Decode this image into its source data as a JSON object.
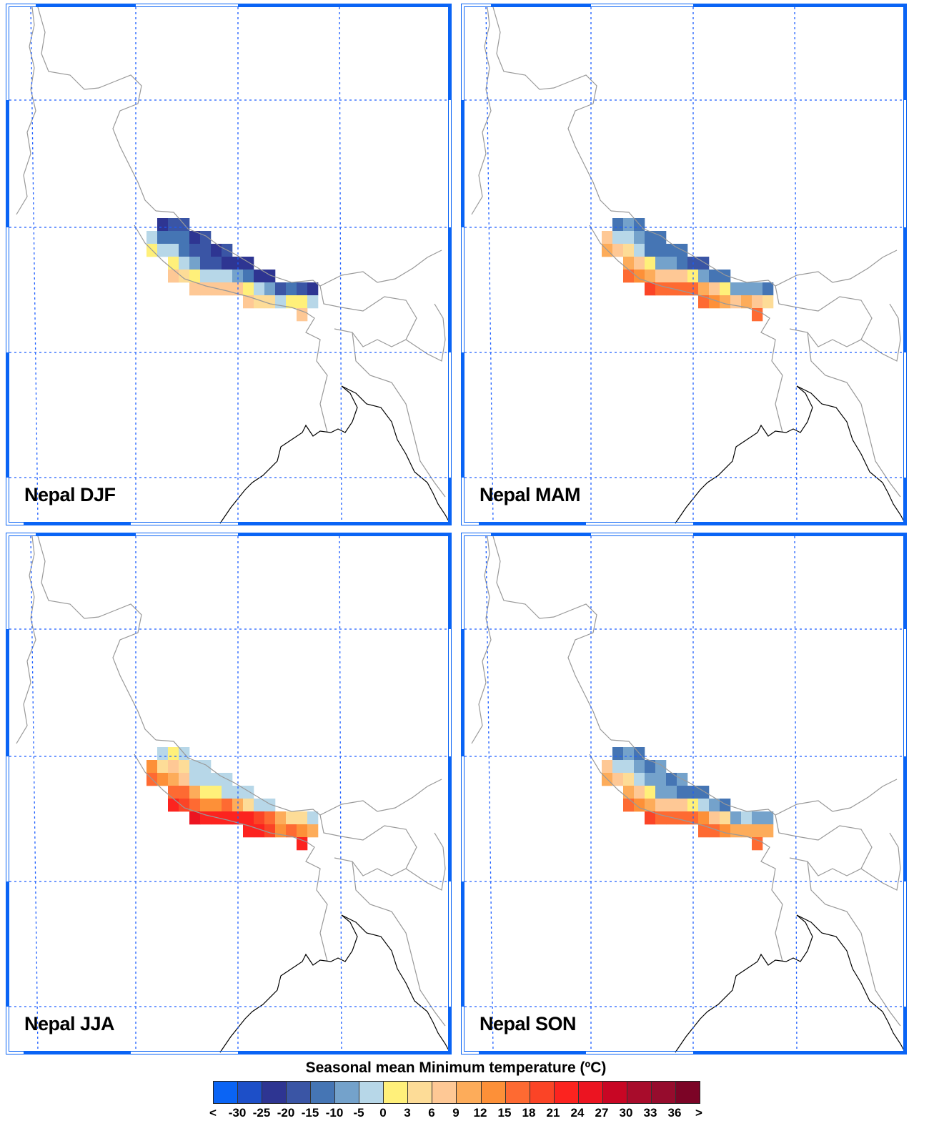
{
  "panels": [
    {
      "title": "Nepal DJF",
      "rows": [
        {
          "start": 1,
          "levels": [
            2,
            3,
            3
          ]
        },
        {
          "start": 0,
          "levels": [
            6,
            4,
            4,
            4,
            2,
            3
          ]
        },
        {
          "start": 0,
          "levels": [
            7,
            6,
            6,
            4,
            3,
            3,
            2,
            3
          ]
        },
        {
          "start": 2,
          "levels": [
            7,
            6,
            5,
            3,
            3,
            2,
            2,
            2
          ]
        },
        {
          "start": 2,
          "levels": [
            9,
            8,
            7,
            6,
            6,
            6,
            5,
            4,
            2,
            2
          ]
        },
        {
          "start": 4,
          "levels": [
            9,
            9,
            9,
            9,
            9,
            7,
            6,
            5,
            3,
            4,
            3,
            2
          ]
        },
        {
          "start": 9,
          "levels": [
            9,
            8,
            8,
            6,
            7,
            7,
            6
          ]
        },
        {
          "start": 14,
          "levels": [
            9
          ]
        }
      ]
    },
    {
      "title": "Nepal MAM",
      "rows": [
        {
          "start": 1,
          "levels": [
            4,
            5,
            4
          ]
        },
        {
          "start": 0,
          "levels": [
            9,
            6,
            6,
            5,
            4,
            4
          ]
        },
        {
          "start": 0,
          "levels": [
            10,
            9,
            8,
            6,
            4,
            4,
            4,
            4
          ]
        },
        {
          "start": 2,
          "levels": [
            10,
            9,
            7,
            5,
            5,
            4,
            3,
            3
          ]
        },
        {
          "start": 2,
          "levels": [
            12,
            11,
            10,
            9,
            9,
            9,
            7,
            5,
            4,
            4
          ]
        },
        {
          "start": 4,
          "levels": [
            13,
            12,
            12,
            12,
            12,
            10,
            9,
            7,
            5,
            5,
            5,
            4
          ]
        },
        {
          "start": 9,
          "levels": [
            12,
            11,
            10,
            9,
            10,
            9,
            8
          ]
        },
        {
          "start": 14,
          "levels": [
            12
          ]
        }
      ]
    },
    {
      "title": "Nepal JJA",
      "rows": [
        {
          "start": 1,
          "levels": [
            6,
            7,
            6
          ]
        },
        {
          "start": 0,
          "levels": [
            11,
            8,
            9,
            8,
            6,
            6
          ]
        },
        {
          "start": 0,
          "levels": [
            12,
            11,
            10,
            9,
            6,
            6,
            6,
            6
          ]
        },
        {
          "start": 2,
          "levels": [
            12,
            12,
            10,
            7,
            7,
            6,
            6,
            6
          ]
        },
        {
          "start": 2,
          "levels": [
            14,
            13,
            12,
            11,
            11,
            12,
            10,
            8,
            6,
            6
          ]
        },
        {
          "start": 4,
          "levels": [
            15,
            14,
            14,
            14,
            14,
            14,
            13,
            12,
            10,
            8,
            8,
            6
          ]
        },
        {
          "start": 9,
          "levels": [
            14,
            14,
            13,
            11,
            12,
            11,
            10
          ]
        },
        {
          "start": 14,
          "levels": [
            14
          ]
        }
      ]
    },
    {
      "title": "Nepal SON",
      "rows": [
        {
          "start": 1,
          "levels": [
            4,
            5,
            4
          ]
        },
        {
          "start": 0,
          "levels": [
            9,
            6,
            6,
            5,
            4,
            5
          ]
        },
        {
          "start": 0,
          "levels": [
            10,
            9,
            8,
            6,
            5,
            5,
            4,
            5
          ]
        },
        {
          "start": 2,
          "levels": [
            10,
            9,
            7,
            5,
            5,
            4,
            4,
            4
          ]
        },
        {
          "start": 2,
          "levels": [
            12,
            11,
            10,
            9,
            9,
            9,
            7,
            6,
            5,
            4
          ]
        },
        {
          "start": 4,
          "levels": [
            13,
            12,
            12,
            12,
            12,
            11,
            9,
            8,
            5,
            6,
            5,
            5
          ]
        },
        {
          "start": 9,
          "levels": [
            12,
            12,
            11,
            10,
            10,
            10,
            10
          ]
        },
        {
          "start": 14,
          "levels": [
            12
          ]
        }
      ]
    }
  ],
  "colorbar": {
    "title": "Seasonal mean Minimum temperature (ºC)",
    "labels": [
      "<",
      "-30",
      "-25",
      "-20",
      "-15",
      "-10",
      "-5",
      "0",
      "3",
      "6",
      "9",
      "12",
      "15",
      "18",
      "21",
      "24",
      "27",
      "30",
      "33",
      "36",
      ">"
    ],
    "colors": [
      "#0a64f5",
      "#1d4fc8",
      "#2e3592",
      "#3a55a5",
      "#4575b4",
      "#74a2cb",
      "#b7d7e8",
      "#fff07a",
      "#fddc97",
      "#fec895",
      "#fdac5a",
      "#fd9038",
      "#fe6a32",
      "#fb4426",
      "#fc231f",
      "#ec1421",
      "#c80624",
      "#a80c2b",
      "#960c2d",
      "#7c0426"
    ]
  },
  "colors": {
    "grid": "#1a5cff",
    "border": "#999999",
    "coast": "#000000",
    "frame": "#0a64f5"
  }
}
